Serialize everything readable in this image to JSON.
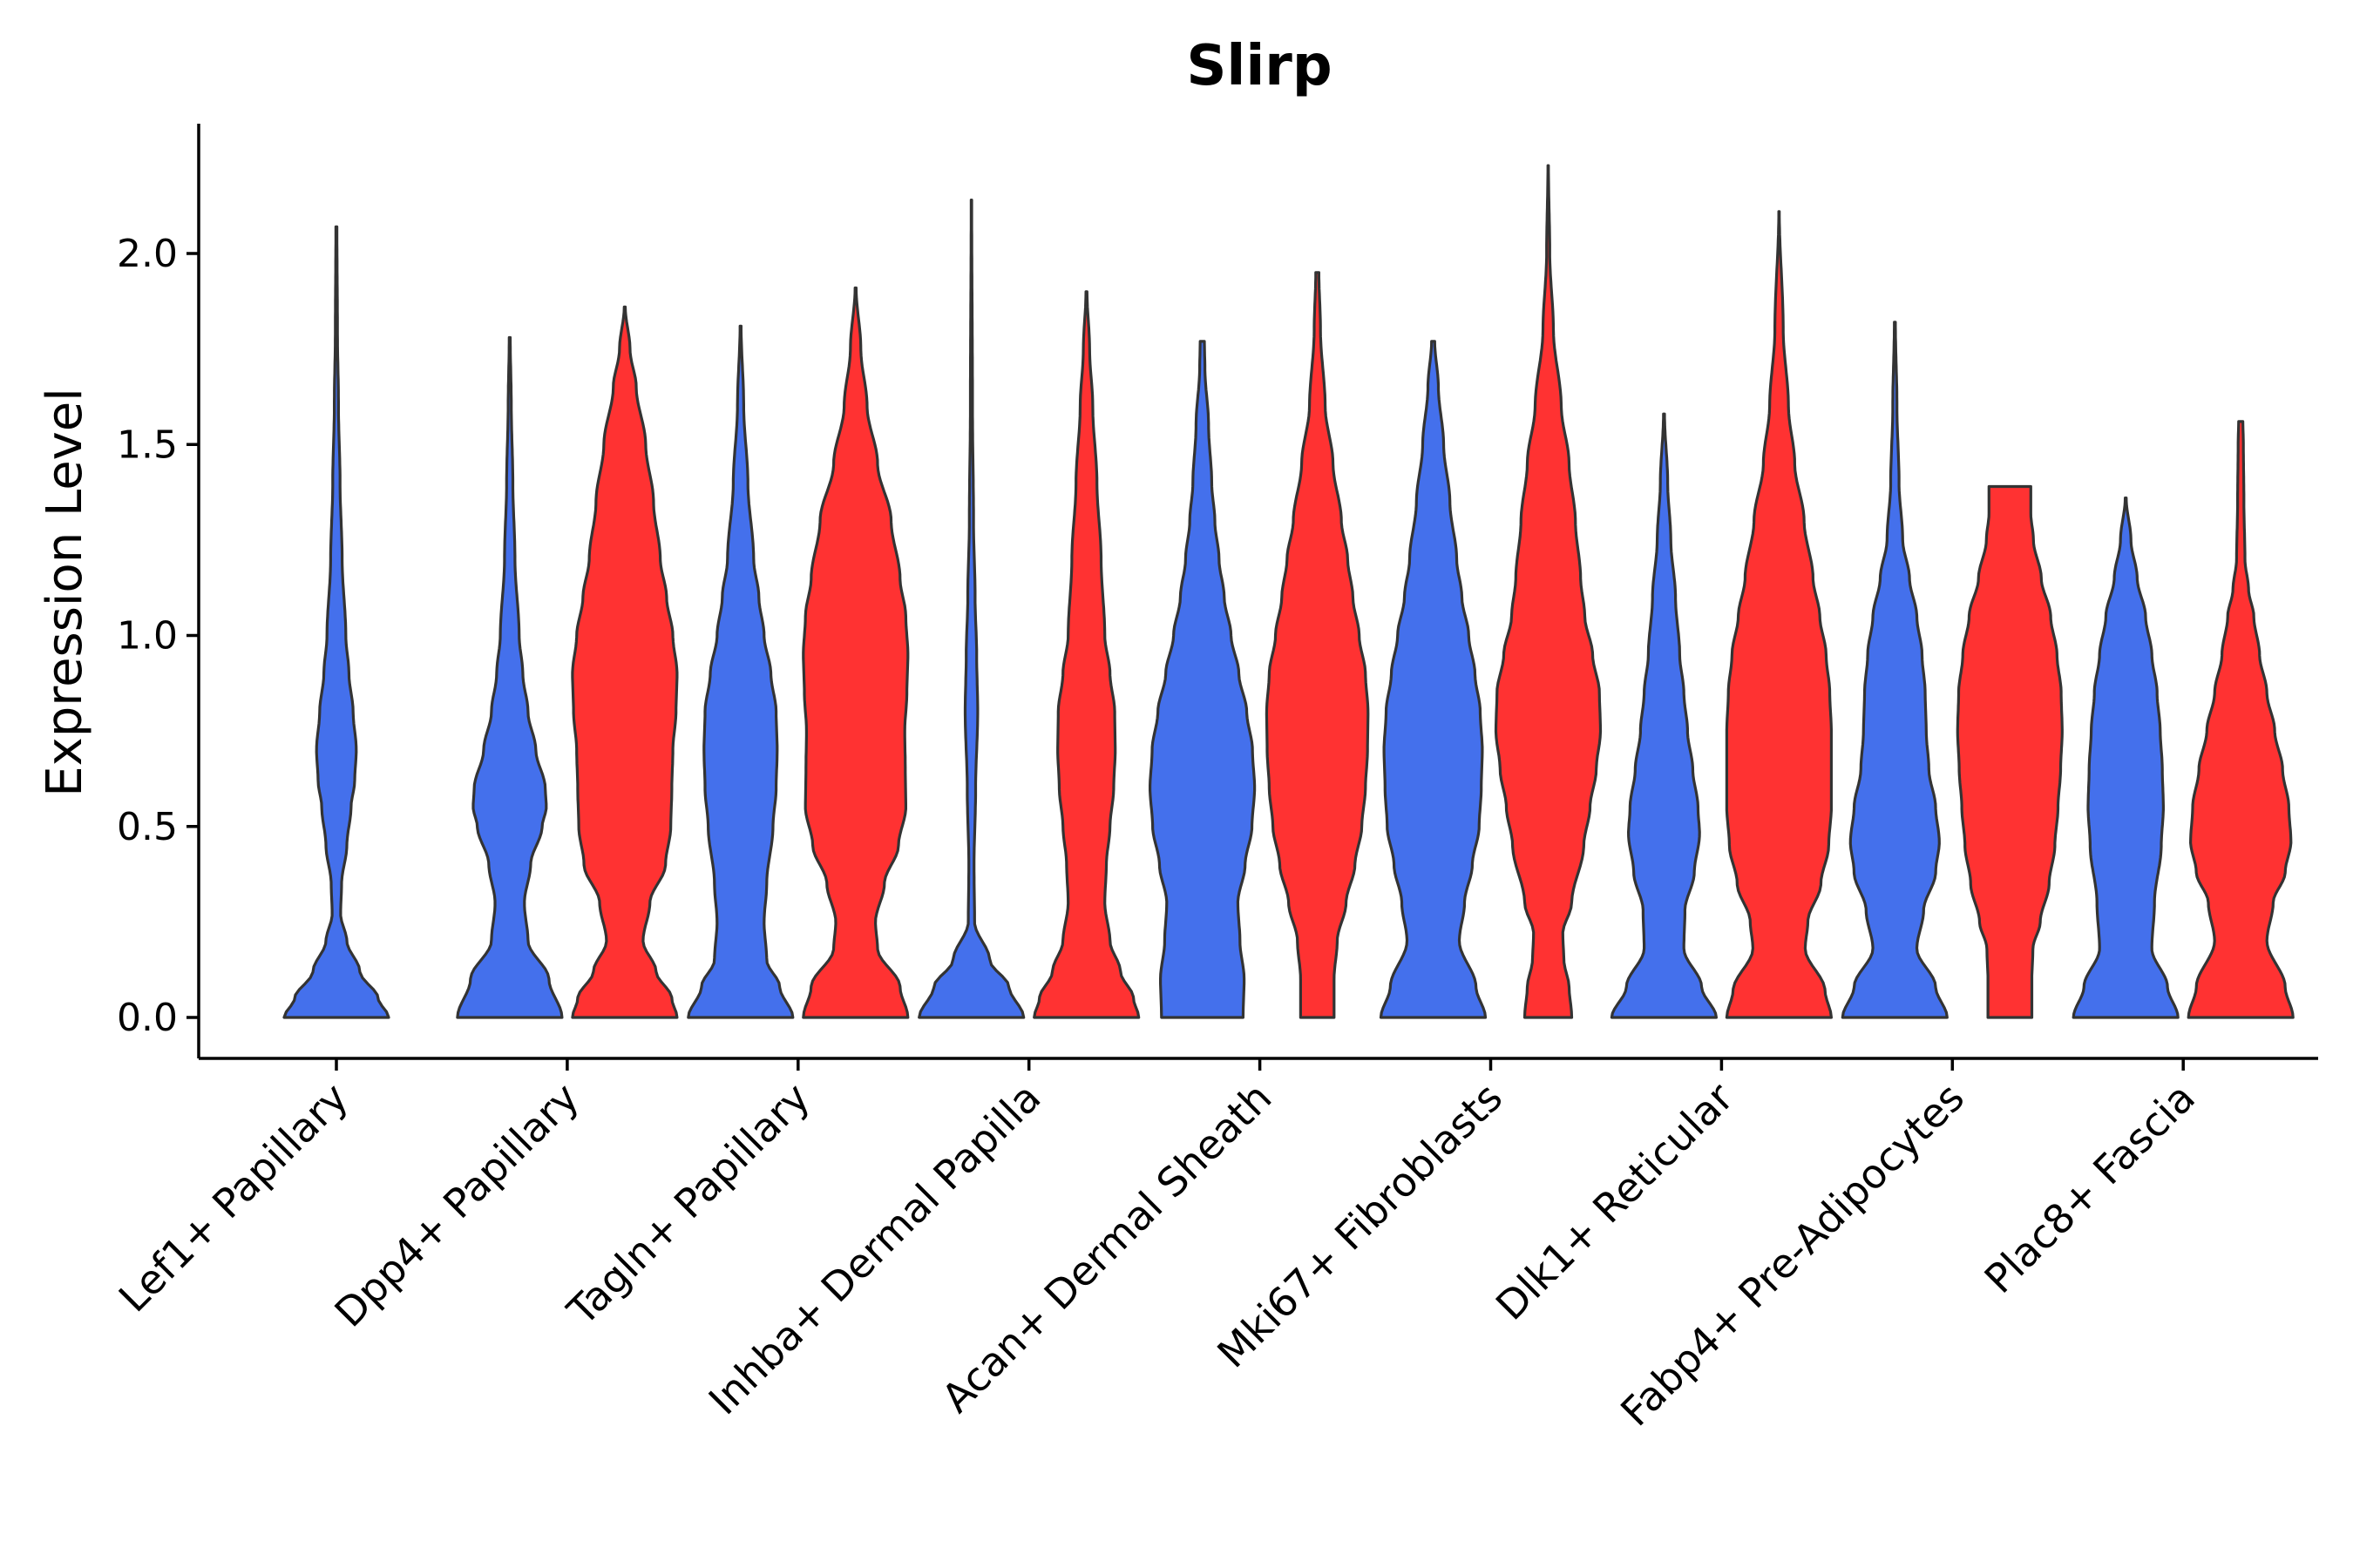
{
  "chart_data": {
    "type": "violin",
    "title": "Slirp",
    "xlabel": "",
    "ylabel": "Expression Level",
    "ylim": [
      -0.11,
      2.35
    ],
    "yticks": [
      0.0,
      0.5,
      1.0,
      1.5,
      2.0
    ],
    "ytick_labels": [
      "0.0",
      "0.5",
      "1.0",
      "1.5",
      "2.0"
    ],
    "grid": false,
    "legend": "none",
    "series_colors": {
      "group1": "#4470EC",
      "group2": "#FF3232"
    },
    "categories": [
      "Lef1+ Papillary",
      "Dpp4+ Papillary",
      "Tagln+ Papillary",
      "Inhba+ Dermal Papilla",
      "Acan+ Dermal Sheath",
      "Mki67+ Fibroblasts",
      "Dlk1+ Reticular",
      "Fabp4+ Pre-Adipocytes",
      "Plac8+ Fascia"
    ],
    "violins": [
      {
        "category": "Lef1+ Papillary",
        "group": "group1",
        "max": 2.07,
        "profile": [
          [
            0,
            1
          ],
          [
            0.05,
            0.8
          ],
          [
            0.12,
            0.45
          ],
          [
            0.2,
            0.2
          ],
          [
            0.27,
            0.08
          ],
          [
            0.35,
            0.1
          ],
          [
            0.45,
            0.2
          ],
          [
            0.55,
            0.28
          ],
          [
            0.62,
            0.35
          ],
          [
            0.7,
            0.38
          ],
          [
            0.8,
            0.32
          ],
          [
            0.9,
            0.24
          ],
          [
            1.0,
            0.18
          ],
          [
            1.2,
            0.11
          ],
          [
            1.4,
            0.07
          ],
          [
            1.6,
            0.04
          ],
          [
            1.8,
            0.02
          ],
          [
            2.07,
            0.01
          ]
        ]
      },
      {
        "category": "Dpp4+ Papillary",
        "group": "group1",
        "max": 1.78,
        "profile": [
          [
            0,
            1
          ],
          [
            0.1,
            0.75
          ],
          [
            0.2,
            0.35
          ],
          [
            0.3,
            0.28
          ],
          [
            0.4,
            0.4
          ],
          [
            0.5,
            0.62
          ],
          [
            0.55,
            0.7
          ],
          [
            0.6,
            0.68
          ],
          [
            0.7,
            0.5
          ],
          [
            0.8,
            0.35
          ],
          [
            0.9,
            0.25
          ],
          [
            1.0,
            0.18
          ],
          [
            1.2,
            0.1
          ],
          [
            1.4,
            0.06
          ],
          [
            1.6,
            0.03
          ],
          [
            1.78,
            0.01
          ]
        ]
      },
      {
        "category": "Dpp4+ Papillary",
        "group": "group2",
        "max": 1.86,
        "profile": [
          [
            0,
            1
          ],
          [
            0.05,
            0.9
          ],
          [
            0.12,
            0.6
          ],
          [
            0.2,
            0.35
          ],
          [
            0.3,
            0.48
          ],
          [
            0.4,
            0.78
          ],
          [
            0.5,
            0.88
          ],
          [
            0.6,
            0.9
          ],
          [
            0.7,
            0.92
          ],
          [
            0.8,
            0.98
          ],
          [
            0.9,
            1.0
          ],
          [
            1.0,
            0.92
          ],
          [
            1.1,
            0.8
          ],
          [
            1.2,
            0.68
          ],
          [
            1.35,
            0.55
          ],
          [
            1.5,
            0.4
          ],
          [
            1.65,
            0.22
          ],
          [
            1.75,
            0.1
          ],
          [
            1.86,
            0.01
          ]
        ]
      },
      {
        "category": "Tagln+ Papillary",
        "group": "group1",
        "max": 1.81,
        "profile": [
          [
            0,
            1
          ],
          [
            0.08,
            0.75
          ],
          [
            0.15,
            0.5
          ],
          [
            0.25,
            0.45
          ],
          [
            0.35,
            0.5
          ],
          [
            0.5,
            0.62
          ],
          [
            0.6,
            0.68
          ],
          [
            0.7,
            0.7
          ],
          [
            0.8,
            0.68
          ],
          [
            0.9,
            0.58
          ],
          [
            1.0,
            0.45
          ],
          [
            1.1,
            0.35
          ],
          [
            1.2,
            0.25
          ],
          [
            1.4,
            0.14
          ],
          [
            1.6,
            0.06
          ],
          [
            1.81,
            0.01
          ]
        ]
      },
      {
        "category": "Tagln+ Papillary",
        "group": "group2",
        "max": 1.91,
        "profile": [
          [
            0,
            1
          ],
          [
            0.08,
            0.85
          ],
          [
            0.18,
            0.42
          ],
          [
            0.25,
            0.38
          ],
          [
            0.35,
            0.55
          ],
          [
            0.45,
            0.82
          ],
          [
            0.55,
            0.96
          ],
          [
            0.65,
            0.95
          ],
          [
            0.75,
            0.94
          ],
          [
            0.85,
            0.98
          ],
          [
            0.95,
            1.0
          ],
          [
            1.05,
            0.96
          ],
          [
            1.15,
            0.85
          ],
          [
            1.3,
            0.68
          ],
          [
            1.45,
            0.42
          ],
          [
            1.6,
            0.22
          ],
          [
            1.75,
            0.1
          ],
          [
            1.91,
            0.01
          ]
        ]
      },
      {
        "category": "Inhba+ Dermal Papilla",
        "group": "group1",
        "max": 2.14,
        "profile": [
          [
            0,
            1
          ],
          [
            0.08,
            0.72
          ],
          [
            0.15,
            0.35
          ],
          [
            0.25,
            0.06
          ],
          [
            0.4,
            0.05
          ],
          [
            0.6,
            0.08
          ],
          [
            0.8,
            0.12
          ],
          [
            0.95,
            0.1
          ],
          [
            1.1,
            0.07
          ],
          [
            1.3,
            0.04
          ],
          [
            1.6,
            0.02
          ],
          [
            2.14,
            0.005
          ]
        ]
      },
      {
        "category": "Inhba+ Dermal Papilla",
        "group": "group2",
        "max": 1.9,
        "profile": [
          [
            0,
            1
          ],
          [
            0.05,
            0.9
          ],
          [
            0.12,
            0.65
          ],
          [
            0.2,
            0.45
          ],
          [
            0.3,
            0.35
          ],
          [
            0.4,
            0.38
          ],
          [
            0.5,
            0.45
          ],
          [
            0.6,
            0.52
          ],
          [
            0.7,
            0.55
          ],
          [
            0.8,
            0.54
          ],
          [
            0.9,
            0.45
          ],
          [
            1.0,
            0.35
          ],
          [
            1.2,
            0.28
          ],
          [
            1.4,
            0.2
          ],
          [
            1.6,
            0.12
          ],
          [
            1.75,
            0.06
          ],
          [
            1.9,
            0.01
          ]
        ]
      },
      {
        "category": "Acan+ Dermal Sheath",
        "group": "group1",
        "max": 1.77,
        "profile": [
          [
            0,
            0.78
          ],
          [
            0.1,
            0.8
          ],
          [
            0.2,
            0.72
          ],
          [
            0.3,
            0.68
          ],
          [
            0.4,
            0.82
          ],
          [
            0.5,
            0.95
          ],
          [
            0.6,
            1.0
          ],
          [
            0.7,
            0.96
          ],
          [
            0.8,
            0.85
          ],
          [
            0.9,
            0.7
          ],
          [
            1.0,
            0.55
          ],
          [
            1.1,
            0.42
          ],
          [
            1.2,
            0.32
          ],
          [
            1.3,
            0.24
          ],
          [
            1.4,
            0.18
          ],
          [
            1.55,
            0.12
          ],
          [
            1.7,
            0.05
          ],
          [
            1.77,
            0.04
          ]
        ]
      },
      {
        "category": "Acan+ Dermal Sheath",
        "group": "group2",
        "max": 1.95,
        "profile": [
          [
            0,
            0.32
          ],
          [
            0.1,
            0.32
          ],
          [
            0.2,
            0.38
          ],
          [
            0.3,
            0.55
          ],
          [
            0.4,
            0.72
          ],
          [
            0.5,
            0.85
          ],
          [
            0.6,
            0.92
          ],
          [
            0.7,
            0.96
          ],
          [
            0.8,
            0.97
          ],
          [
            0.9,
            0.92
          ],
          [
            1.0,
            0.8
          ],
          [
            1.1,
            0.68
          ],
          [
            1.2,
            0.58
          ],
          [
            1.3,
            0.46
          ],
          [
            1.45,
            0.3
          ],
          [
            1.6,
            0.15
          ],
          [
            1.8,
            0.06
          ],
          [
            1.95,
            0.03
          ]
        ]
      },
      {
        "category": "Mki67+ Fibroblasts",
        "group": "group1",
        "max": 1.77,
        "profile": [
          [
            0,
            1
          ],
          [
            0.08,
            0.82
          ],
          [
            0.2,
            0.5
          ],
          [
            0.3,
            0.6
          ],
          [
            0.4,
            0.75
          ],
          [
            0.5,
            0.88
          ],
          [
            0.6,
            0.92
          ],
          [
            0.7,
            0.94
          ],
          [
            0.8,
            0.9
          ],
          [
            0.9,
            0.8
          ],
          [
            1.0,
            0.68
          ],
          [
            1.1,
            0.55
          ],
          [
            1.2,
            0.45
          ],
          [
            1.35,
            0.32
          ],
          [
            1.5,
            0.2
          ],
          [
            1.65,
            0.1
          ],
          [
            1.77,
            0.03
          ]
        ]
      },
      {
        "category": "Mki67+ Fibroblasts",
        "group": "group2",
        "max": 2.23,
        "profile": [
          [
            0,
            0.45
          ],
          [
            0.08,
            0.4
          ],
          [
            0.15,
            0.3
          ],
          [
            0.22,
            0.28
          ],
          [
            0.3,
            0.45
          ],
          [
            0.45,
            0.68
          ],
          [
            0.55,
            0.8
          ],
          [
            0.65,
            0.92
          ],
          [
            0.75,
            1.0
          ],
          [
            0.85,
            0.98
          ],
          [
            0.95,
            0.85
          ],
          [
            1.05,
            0.7
          ],
          [
            1.15,
            0.62
          ],
          [
            1.3,
            0.52
          ],
          [
            1.45,
            0.4
          ],
          [
            1.6,
            0.25
          ],
          [
            1.8,
            0.1
          ],
          [
            2.0,
            0.03
          ],
          [
            2.23,
            0.005
          ]
        ]
      },
      {
        "category": "Dlk1+ Reticular",
        "group": "group1",
        "max": 1.58,
        "profile": [
          [
            0,
            1
          ],
          [
            0.08,
            0.72
          ],
          [
            0.18,
            0.38
          ],
          [
            0.28,
            0.4
          ],
          [
            0.38,
            0.58
          ],
          [
            0.48,
            0.68
          ],
          [
            0.55,
            0.65
          ],
          [
            0.65,
            0.55
          ],
          [
            0.75,
            0.45
          ],
          [
            0.85,
            0.38
          ],
          [
            0.95,
            0.3
          ],
          [
            1.1,
            0.22
          ],
          [
            1.25,
            0.13
          ],
          [
            1.4,
            0.07
          ],
          [
            1.58,
            0.01
          ]
        ]
      },
      {
        "category": "Dlk1+ Reticular",
        "group": "group2",
        "max": 2.11,
        "profile": [
          [
            0,
            1
          ],
          [
            0.07,
            0.88
          ],
          [
            0.18,
            0.5
          ],
          [
            0.25,
            0.55
          ],
          [
            0.35,
            0.8
          ],
          [
            0.45,
            0.95
          ],
          [
            0.55,
            1.0
          ],
          [
            0.65,
            1.0
          ],
          [
            0.75,
            1.0
          ],
          [
            0.85,
            0.97
          ],
          [
            0.95,
            0.9
          ],
          [
            1.05,
            0.78
          ],
          [
            1.15,
            0.65
          ],
          [
            1.3,
            0.48
          ],
          [
            1.45,
            0.3
          ],
          [
            1.6,
            0.18
          ],
          [
            1.8,
            0.08
          ],
          [
            2.11,
            0.005
          ]
        ]
      },
      {
        "category": "Fabp4+ Pre-Adipocytes",
        "group": "group1",
        "max": 1.82,
        "profile": [
          [
            0,
            1
          ],
          [
            0.08,
            0.78
          ],
          [
            0.18,
            0.42
          ],
          [
            0.28,
            0.55
          ],
          [
            0.38,
            0.78
          ],
          [
            0.46,
            0.85
          ],
          [
            0.55,
            0.78
          ],
          [
            0.65,
            0.65
          ],
          [
            0.75,
            0.6
          ],
          [
            0.85,
            0.58
          ],
          [
            0.95,
            0.52
          ],
          [
            1.05,
            0.42
          ],
          [
            1.15,
            0.28
          ],
          [
            1.25,
            0.15
          ],
          [
            1.4,
            0.08
          ],
          [
            1.6,
            0.04
          ],
          [
            1.82,
            0.01
          ]
        ]
      },
      {
        "category": "Fabp4+ Pre-Adipocytes",
        "group": "group2",
        "max": 1.39,
        "profile": [
          [
            0,
            0.42
          ],
          [
            0.1,
            0.42
          ],
          [
            0.18,
            0.44
          ],
          [
            0.25,
            0.58
          ],
          [
            0.35,
            0.75
          ],
          [
            0.45,
            0.86
          ],
          [
            0.55,
            0.92
          ],
          [
            0.65,
            0.97
          ],
          [
            0.75,
            1.0
          ],
          [
            0.85,
            0.98
          ],
          [
            0.95,
            0.9
          ],
          [
            1.05,
            0.78
          ],
          [
            1.15,
            0.6
          ],
          [
            1.25,
            0.45
          ],
          [
            1.32,
            0.4
          ],
          [
            1.39,
            0.4
          ]
        ]
      },
      {
        "category": "Plac8+ Fascia",
        "group": "group1",
        "max": 1.36,
        "profile": [
          [
            0,
            1
          ],
          [
            0.08,
            0.8
          ],
          [
            0.18,
            0.5
          ],
          [
            0.3,
            0.55
          ],
          [
            0.45,
            0.68
          ],
          [
            0.55,
            0.72
          ],
          [
            0.65,
            0.7
          ],
          [
            0.75,
            0.66
          ],
          [
            0.85,
            0.6
          ],
          [
            0.95,
            0.5
          ],
          [
            1.05,
            0.38
          ],
          [
            1.15,
            0.22
          ],
          [
            1.25,
            0.1
          ],
          [
            1.36,
            0.01
          ]
        ]
      },
      {
        "category": "Plac8+ Fascia",
        "group": "group2",
        "max": 1.56,
        "profile": [
          [
            0,
            1
          ],
          [
            0.08,
            0.85
          ],
          [
            0.2,
            0.5
          ],
          [
            0.3,
            0.62
          ],
          [
            0.38,
            0.85
          ],
          [
            0.46,
            0.96
          ],
          [
            0.55,
            0.92
          ],
          [
            0.65,
            0.8
          ],
          [
            0.75,
            0.65
          ],
          [
            0.85,
            0.5
          ],
          [
            0.95,
            0.36
          ],
          [
            1.05,
            0.25
          ],
          [
            1.12,
            0.15
          ],
          [
            1.2,
            0.08
          ],
          [
            1.35,
            0.06
          ],
          [
            1.5,
            0.05
          ],
          [
            1.56,
            0.04
          ]
        ]
      }
    ]
  }
}
